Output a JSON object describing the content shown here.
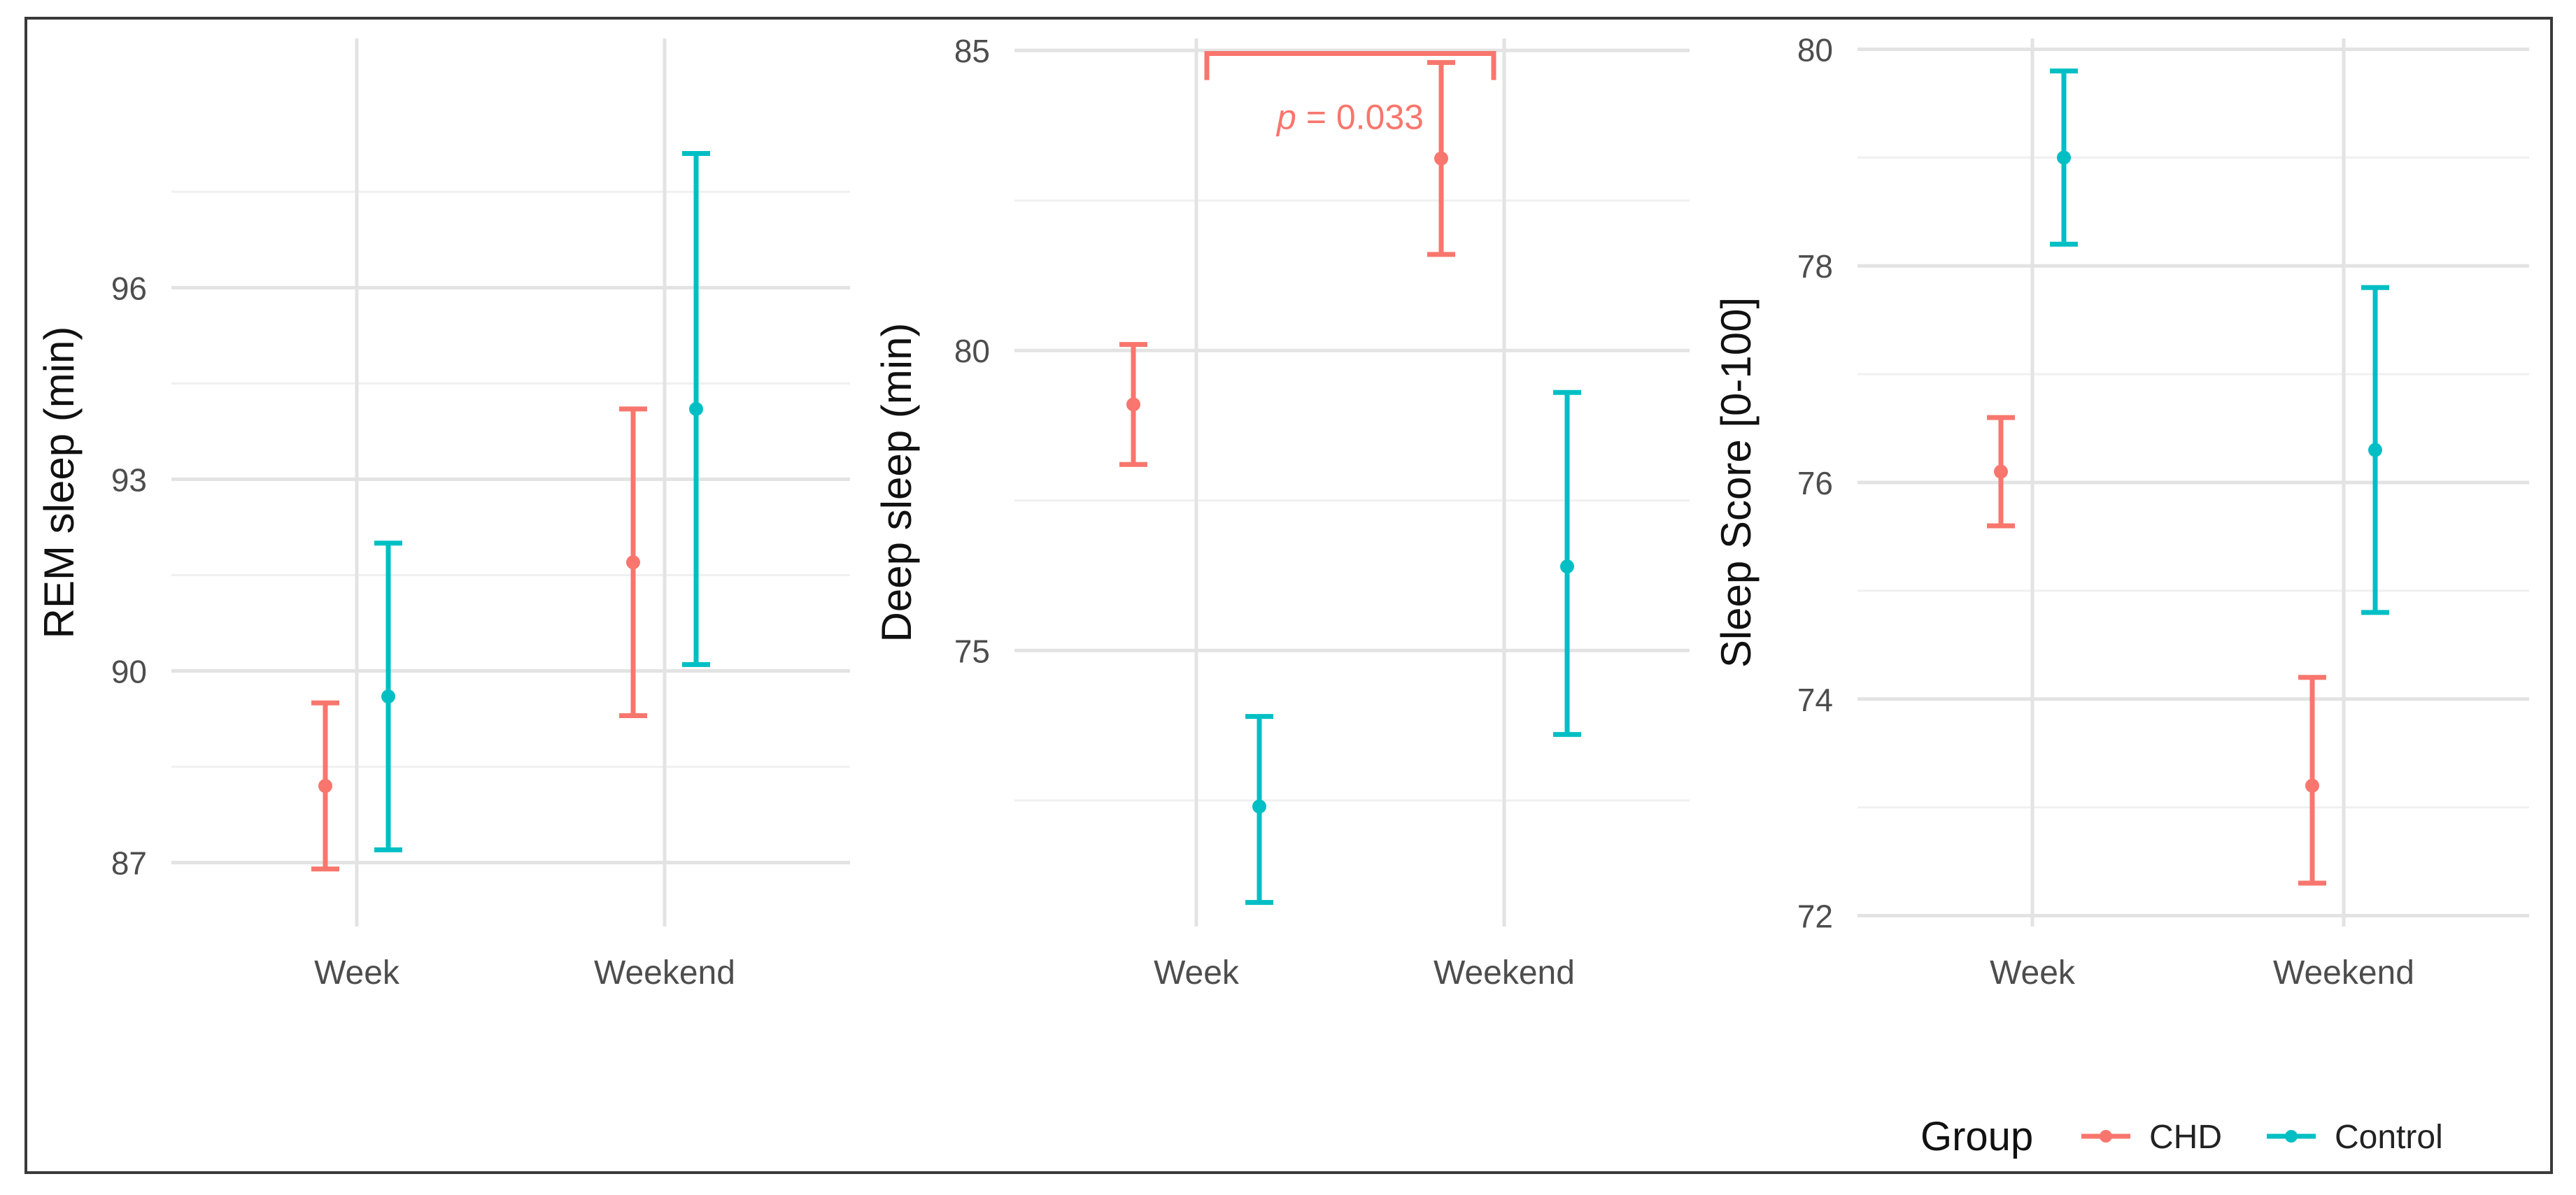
{
  "chart_data": [
    {
      "type": "errorbar",
      "ylabel": "REM sleep (min)",
      "categories": [
        "Week",
        "Weekend"
      ],
      "ylim": [
        86.0,
        99.9
      ],
      "yticks": [
        87,
        90,
        93,
        96
      ],
      "series": [
        {
          "name": "CHD",
          "color": "#F8766D",
          "points": [
            {
              "x": "Week",
              "mean": 88.2,
              "lower": 86.9,
              "upper": 89.5
            },
            {
              "x": "Weekend",
              "mean": 91.7,
              "lower": 89.3,
              "upper": 94.1
            }
          ]
        },
        {
          "name": "Control",
          "color": "#00BFC4",
          "points": [
            {
              "x": "Week",
              "mean": 89.6,
              "lower": 87.2,
              "upper": 92.0
            },
            {
              "x": "Weekend",
              "mean": 94.1,
              "lower": 90.1,
              "upper": 98.1
            }
          ]
        }
      ]
    },
    {
      "type": "errorbar",
      "ylabel": "Deep sleep (min)",
      "categories": [
        "Week",
        "Weekend"
      ],
      "ylim": [
        70.4,
        85.2
      ],
      "yticks": [
        75,
        80,
        85
      ],
      "series": [
        {
          "name": "CHD",
          "color": "#F8766D",
          "points": [
            {
              "x": "Week",
              "mean": 79.1,
              "lower": 78.1,
              "upper": 80.1
            },
            {
              "x": "Weekend",
              "mean": 83.2,
              "lower": 81.6,
              "upper": 84.8
            }
          ]
        },
        {
          "name": "Control",
          "color": "#00BFC4",
          "points": [
            {
              "x": "Week",
              "mean": 72.4,
              "lower": 70.8,
              "upper": 73.9
            },
            {
              "x": "Weekend",
              "mean": 76.4,
              "lower": 73.6,
              "upper": 79.3
            }
          ]
        }
      ],
      "annotation": {
        "label_italic": "p",
        "label_rest": " = 0.033",
        "from": "Week",
        "to": "Weekend",
        "y": 84.95,
        "label_y": 83.9,
        "color": "#F8766D"
      }
    },
    {
      "type": "errorbar",
      "ylabel": "Sleep Score [0-100]",
      "categories": [
        "Week",
        "Weekend"
      ],
      "ylim": [
        71.9,
        80.1
      ],
      "yticks": [
        72,
        74,
        76,
        78,
        80
      ],
      "series": [
        {
          "name": "CHD",
          "color": "#F8766D",
          "points": [
            {
              "x": "Week",
              "mean": 76.1,
              "lower": 75.6,
              "upper": 76.6
            },
            {
              "x": "Weekend",
              "mean": 73.2,
              "lower": 72.3,
              "upper": 74.2
            }
          ]
        },
        {
          "name": "Control",
          "color": "#00BFC4",
          "points": [
            {
              "x": "Week",
              "mean": 79.0,
              "lower": 78.2,
              "upper": 79.8
            },
            {
              "x": "Weekend",
              "mean": 76.3,
              "lower": 74.8,
              "upper": 77.8
            }
          ]
        }
      ]
    }
  ],
  "legend": {
    "title": "Group",
    "items": [
      {
        "label": "CHD",
        "color": "#F8766D"
      },
      {
        "label": "Control",
        "color": "#00BFC4"
      }
    ]
  }
}
